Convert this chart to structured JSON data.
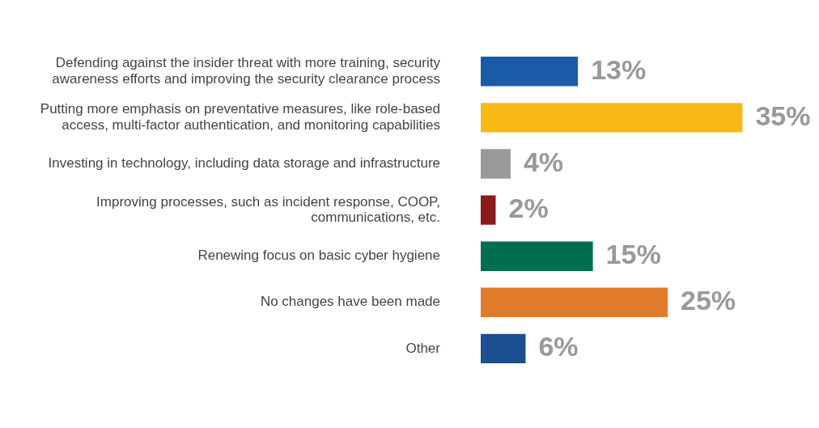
{
  "chart_data": {
    "type": "bar",
    "orientation": "horizontal",
    "categories": [
      "Defending against the insider threat with more training, security awareness efforts and improving the security clearance process",
      "Putting more emphasis on preventative measures, like role-based access, multi-factor authentication, and monitoring capabilities",
      "Investing in technology, including data storage and infrastructure",
      "Improving processes, such as incident response, COOP, communications, etc.",
      "Renewing focus on basic cyber hygiene",
      "No changes have been made",
      "Other"
    ],
    "values": [
      13,
      35,
      4,
      2,
      15,
      25,
      6
    ],
    "colors": [
      "#1a5ca8",
      "#f8b916",
      "#999999",
      "#8c1a1c",
      "#006f51",
      "#e07b2a",
      "#1b4f91"
    ],
    "value_labels": [
      "13%",
      "35%",
      "4%",
      "2%",
      "15%",
      "25%",
      "6%"
    ],
    "grid": false,
    "legend": false
  }
}
